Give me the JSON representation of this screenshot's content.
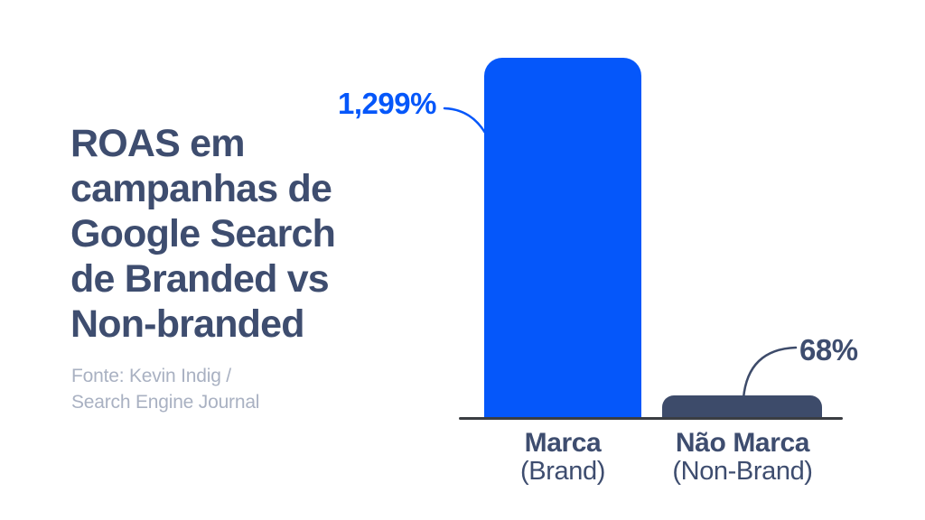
{
  "title": "ROAS em\ncampanhas de\nGoogle Search\nde Branded vs\nNon-branded",
  "source": "Fonte: Kevin Indig /\nSearch Engine Journal",
  "colors": {
    "blue": "#0557FA",
    "navy_text": "#3E4D6F",
    "navy_bar": "#3D4B6A",
    "muted_text": "#A9B1C2",
    "axis": "#3A3D42",
    "background": "#FFFFFF"
  },
  "chart_data": {
    "type": "bar",
    "title": "ROAS em campanhas de Google Search de Branded vs Non-branded",
    "source": "Fonte: Kevin Indig / Search Engine Journal",
    "categories": [
      "Marca",
      "Não Marca"
    ],
    "category_sublabels": [
      "(Brand)",
      "(Non-Brand)"
    ],
    "values": [
      1299,
      68
    ],
    "value_labels": [
      "1,299%",
      "68%"
    ],
    "unit": "%",
    "xlabel": "",
    "ylabel": "",
    "ylim": [
      0,
      1299
    ],
    "grid": false,
    "legend": false,
    "bar_colors": [
      "#0557FA",
      "#3D4B6A"
    ]
  }
}
